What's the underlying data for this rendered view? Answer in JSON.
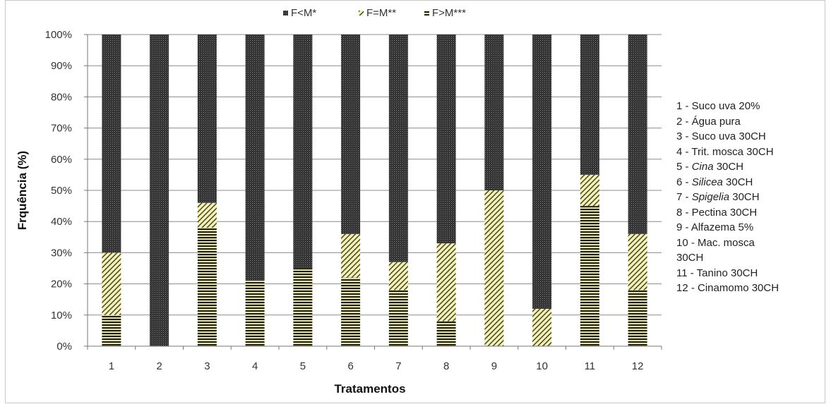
{
  "chart_data": {
    "type": "bar",
    "stacked": true,
    "normalized_percent": true,
    "title": "",
    "xlabel": "Tratamentos",
    "ylabel": "Frquência (%)",
    "ylim": [
      0,
      100
    ],
    "ytick_labels": [
      "0%",
      "10%",
      "20%",
      "30%",
      "40%",
      "50%",
      "60%",
      "70%",
      "80%",
      "90%",
      "100%"
    ],
    "categories": [
      "1",
      "2",
      "3",
      "4",
      "5",
      "6",
      "7",
      "8",
      "9",
      "10",
      "11",
      "12"
    ],
    "legend_position": "top",
    "series": [
      {
        "name": "F>M***",
        "pattern": "horizontal-lines",
        "color": "#2b2b10",
        "values": [
          10,
          0,
          38,
          21,
          25,
          22,
          18,
          8,
          0,
          0,
          45,
          18
        ]
      },
      {
        "name": "F=M**",
        "pattern": "diagonal-lines",
        "color": "#f2f0b0",
        "values": [
          20,
          0,
          8,
          0,
          0,
          14,
          9,
          25,
          50,
          12,
          10,
          18
        ]
      },
      {
        "name": "F<M*",
        "pattern": "dense-dots",
        "color": "#2e2e2e",
        "values": [
          70,
          100,
          54,
          79,
          75,
          64,
          73,
          67,
          50,
          88,
          45,
          64
        ]
      }
    ],
    "legend_order": [
      "F<M*",
      "F=M**",
      "F>M***"
    ],
    "treatment_key": [
      {
        "text": "1 - Suco uva 20%",
        "italic": ""
      },
      {
        "text": "2 - Água pura",
        "italic": ""
      },
      {
        "text": "3 - Suco uva 30CH",
        "italic": ""
      },
      {
        "text": "4 - Trit. mosca 30CH",
        "italic": ""
      },
      {
        "prefix": "5 - ",
        "italic": "Cina",
        "suffix": " 30CH"
      },
      {
        "prefix": "6 - ",
        "italic": "Silicea",
        "suffix": " 30CH"
      },
      {
        "prefix": "7 - ",
        "italic": "Spigelia",
        "suffix": " 30CH"
      },
      {
        "text": "8 - Pectina 30CH",
        "italic": ""
      },
      {
        "text": "9 - Alfazema 5%",
        "italic": ""
      },
      {
        "text": "10 - Mac. mosca 30CH",
        "italic": "",
        "wrap": true
      },
      {
        "text": "11 - Tanino 30CH",
        "italic": ""
      },
      {
        "text": "12 - Cinamomo 30CH",
        "italic": ""
      }
    ]
  }
}
